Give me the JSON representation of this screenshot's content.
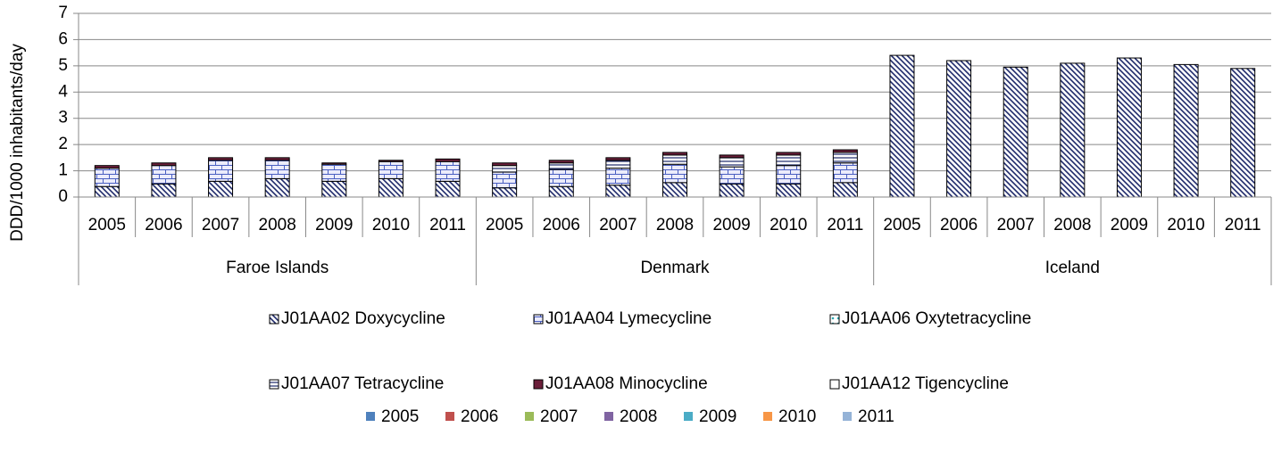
{
  "chart_data": {
    "type": "stacked_bar",
    "y_label": "DDD/1000 inhabitants/day",
    "groups": [
      {
        "name": "Faroe Islands",
        "categories": [
          "2005",
          "2006",
          "2007",
          "2008",
          "2009",
          "2010",
          "2011"
        ]
      },
      {
        "name": "Denmark",
        "categories": [
          "2005",
          "2006",
          "2007",
          "2008",
          "2009",
          "2010",
          "2011"
        ]
      },
      {
        "name": "Iceland",
        "categories": [
          "2005",
          "2006",
          "2007",
          "2008",
          "2009",
          "2010",
          "2011"
        ]
      }
    ],
    "ylim": [
      0,
      7
    ],
    "yticks": [
      0,
      1,
      2,
      3,
      4,
      5,
      6,
      7
    ],
    "grid": true,
    "series": [
      {
        "name": "J01AA02 Doxycycline",
        "color": "#1f2a6b",
        "pattern": "diagonal",
        "values": [
          0.4,
          0.5,
          0.6,
          0.7,
          0.6,
          0.7,
          0.6,
          0.35,
          0.4,
          0.45,
          0.55,
          0.5,
          0.5,
          0.55,
          5.4,
          5.2,
          4.95,
          5.1,
          5.3,
          5.05,
          4.9
        ]
      },
      {
        "name": "J01AA04 Lymecycline",
        "color": "#4a5fc1",
        "pattern": "brick",
        "values": [
          0.7,
          0.7,
          0.8,
          0.7,
          0.65,
          0.65,
          0.75,
          0.6,
          0.65,
          0.65,
          0.7,
          0.65,
          0.7,
          0.75,
          0,
          0,
          0,
          0,
          0,
          0,
          0
        ]
      },
      {
        "name": "J01AA06 Oxytetracycline",
        "color": "#2aa6b0",
        "pattern": "dots",
        "values": [
          0,
          0,
          0,
          0,
          0,
          0,
          0,
          0,
          0,
          0,
          0,
          0,
          0,
          0,
          0,
          0,
          0,
          0,
          0,
          0,
          0
        ]
      },
      {
        "name": "J01AA07 Tetracycline",
        "color": "#1f2a6b",
        "pattern": "hlines",
        "values": [
          0,
          0,
          0,
          0,
          0,
          0,
          0,
          0.25,
          0.25,
          0.3,
          0.35,
          0.35,
          0.4,
          0.4,
          0,
          0,
          0,
          0,
          0,
          0,
          0
        ]
      },
      {
        "name": "J01AA08 Minocycline",
        "color": "#6b1f3a",
        "pattern": "solid",
        "values": [
          0.1,
          0.1,
          0.1,
          0.1,
          0.05,
          0.05,
          0.1,
          0.1,
          0.1,
          0.1,
          0.1,
          0.1,
          0.1,
          0.1,
          0,
          0,
          0,
          0,
          0,
          0,
          0
        ]
      },
      {
        "name": "J01AA12 Tigencycline",
        "color": "#ffffff",
        "pattern": "solid",
        "values": [
          0,
          0,
          0,
          0,
          0,
          0,
          0,
          0,
          0,
          0,
          0,
          0,
          0,
          0,
          0,
          0,
          0,
          0,
          0,
          0,
          0
        ]
      }
    ],
    "extra_legend": [
      {
        "name": "2005",
        "color": "#4f81bd"
      },
      {
        "name": "2006",
        "color": "#c0504d"
      },
      {
        "name": "2007",
        "color": "#9bbb59"
      },
      {
        "name": "2008",
        "color": "#8064a2"
      },
      {
        "name": "2009",
        "color": "#4bacc6"
      },
      {
        "name": "2010",
        "color": "#f79646"
      },
      {
        "name": "2011",
        "color": "#95b3d7"
      }
    ]
  }
}
